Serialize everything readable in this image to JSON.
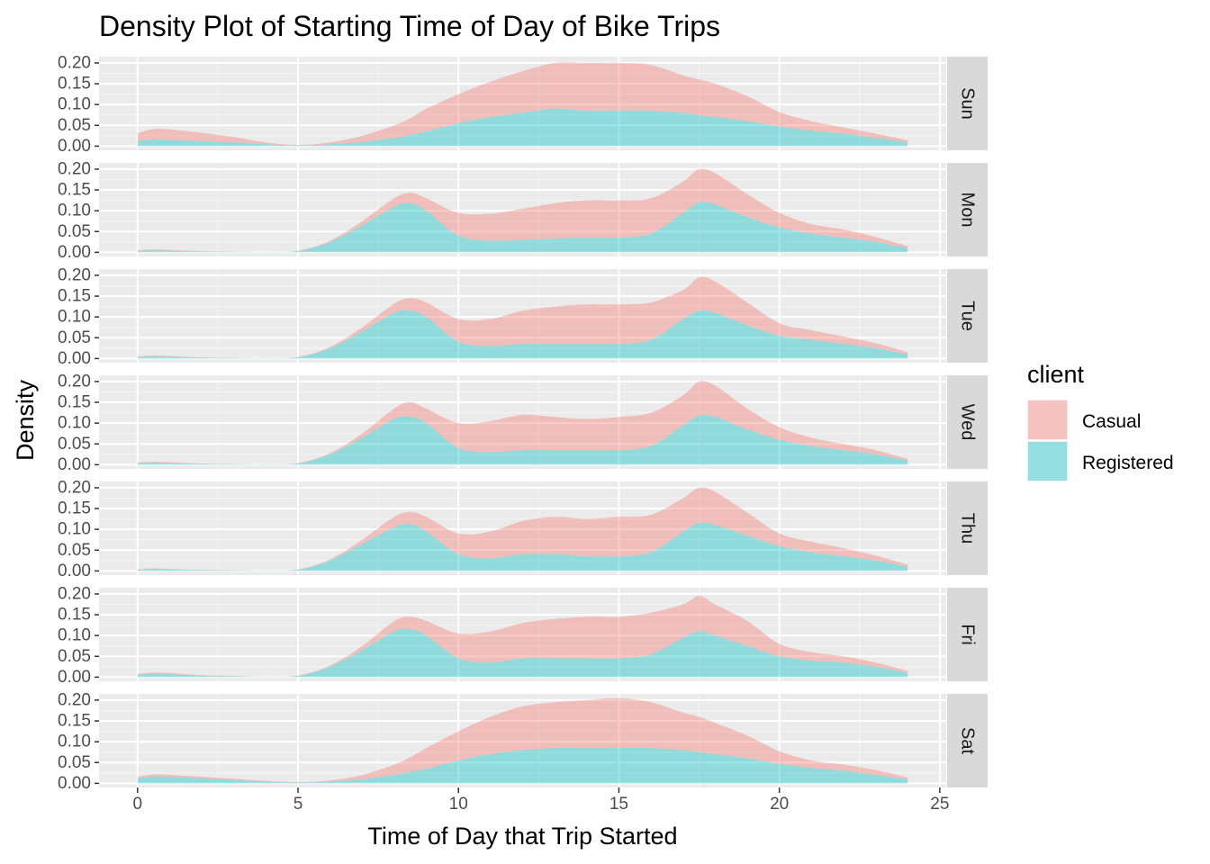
{
  "chart_data": {
    "type": "area",
    "title": "Density Plot of Starting Time of Day of Bike Trips",
    "xlabel": "Time of Day that Trip Started",
    "ylabel": "Density",
    "xlim": [
      -1.2,
      25.2
    ],
    "ylim": [
      -0.01,
      0.215
    ],
    "x_ticks": [
      "0",
      "5",
      "10",
      "15",
      "20",
      "25"
    ],
    "x_tick_values": [
      0,
      5,
      10,
      15,
      20,
      25
    ],
    "y_ticks": [
      "0.00",
      "0.05",
      "0.10",
      "0.15",
      "0.20"
    ],
    "y_tick_values": [
      0,
      0.05,
      0.1,
      0.15,
      0.2
    ],
    "grid": true,
    "stacked": true,
    "legend": {
      "title": "client",
      "position": "right",
      "entries": [
        {
          "name": "Casual",
          "color": "#F8766D"
        },
        {
          "name": "Registered",
          "color": "#00BFC4"
        }
      ]
    },
    "x": [
      0,
      0.5,
      1,
      2,
      3,
      4,
      5,
      6,
      7,
      8,
      8.5,
      9,
      10,
      11,
      12,
      13,
      14,
      15,
      16,
      17,
      17.5,
      18,
      19,
      20,
      21,
      22,
      23,
      24
    ],
    "facets": [
      {
        "label": "Sun",
        "series": [
          {
            "name": "Registered",
            "values": [
              0.013,
              0.016,
              0.015,
              0.012,
              0.009,
              0.004,
              0.002,
              0.004,
              0.01,
              0.02,
              0.027,
              0.035,
              0.055,
              0.07,
              0.08,
              0.09,
              0.085,
              0.085,
              0.085,
              0.08,
              0.075,
              0.07,
              0.06,
              0.047,
              0.037,
              0.03,
              0.02,
              0.009
            ]
          },
          {
            "name": "Casual",
            "values": [
              0.018,
              0.025,
              0.025,
              0.02,
              0.013,
              0.005,
              0.001,
              0.005,
              0.015,
              0.03,
              0.04,
              0.055,
              0.07,
              0.085,
              0.1,
              0.11,
              0.115,
              0.115,
              0.11,
              0.09,
              0.085,
              0.08,
              0.06,
              0.035,
              0.023,
              0.015,
              0.01,
              0.005
            ]
          }
        ]
      },
      {
        "label": "Mon",
        "series": [
          {
            "name": "Registered",
            "values": [
              0.004,
              0.005,
              0.004,
              0.002,
              0.001,
              0.001,
              0.003,
              0.025,
              0.065,
              0.11,
              0.118,
              0.1,
              0.04,
              0.028,
              0.03,
              0.033,
              0.035,
              0.035,
              0.045,
              0.095,
              0.12,
              0.115,
              0.085,
              0.06,
              0.045,
              0.035,
              0.025,
              0.01
            ]
          },
          {
            "name": "Casual",
            "values": [
              0.001,
              0.002,
              0.002,
              0.001,
              0.001,
              0.0,
              0.001,
              0.003,
              0.01,
              0.02,
              0.025,
              0.03,
              0.055,
              0.065,
              0.075,
              0.085,
              0.09,
              0.09,
              0.085,
              0.075,
              0.08,
              0.075,
              0.055,
              0.035,
              0.023,
              0.02,
              0.012,
              0.005
            ]
          }
        ]
      },
      {
        "label": "Tue",
        "series": [
          {
            "name": "Registered",
            "values": [
              0.004,
              0.005,
              0.004,
              0.002,
              0.001,
              0.001,
              0.003,
              0.025,
              0.065,
              0.11,
              0.115,
              0.1,
              0.04,
              0.03,
              0.035,
              0.035,
              0.035,
              0.035,
              0.045,
              0.095,
              0.115,
              0.11,
              0.08,
              0.055,
              0.045,
              0.035,
              0.025,
              0.01
            ]
          },
          {
            "name": "Casual",
            "values": [
              0.001,
              0.002,
              0.002,
              0.001,
              0.001,
              0.0,
              0.001,
              0.003,
              0.01,
              0.022,
              0.03,
              0.035,
              0.055,
              0.065,
              0.08,
              0.09,
              0.095,
              0.095,
              0.09,
              0.07,
              0.08,
              0.075,
              0.055,
              0.03,
              0.023,
              0.018,
              0.012,
              0.005
            ]
          }
        ]
      },
      {
        "label": "Wed",
        "series": [
          {
            "name": "Registered",
            "values": [
              0.004,
              0.005,
              0.004,
              0.002,
              0.001,
              0.001,
              0.003,
              0.025,
              0.065,
              0.11,
              0.115,
              0.1,
              0.04,
              0.03,
              0.035,
              0.035,
              0.035,
              0.035,
              0.045,
              0.095,
              0.118,
              0.115,
              0.085,
              0.06,
              0.045,
              0.035,
              0.025,
              0.01
            ]
          },
          {
            "name": "Casual",
            "values": [
              0.001,
              0.002,
              0.002,
              0.001,
              0.001,
              0.0,
              0.001,
              0.003,
              0.01,
              0.025,
              0.035,
              0.035,
              0.06,
              0.075,
              0.085,
              0.08,
              0.075,
              0.08,
              0.08,
              0.072,
              0.082,
              0.075,
              0.05,
              0.03,
              0.02,
              0.015,
              0.01,
              0.004
            ]
          }
        ]
      },
      {
        "label": "Thu",
        "series": [
          {
            "name": "Registered",
            "values": [
              0.003,
              0.004,
              0.003,
              0.002,
              0.001,
              0.001,
              0.003,
              0.025,
              0.065,
              0.105,
              0.112,
              0.095,
              0.04,
              0.03,
              0.04,
              0.04,
              0.035,
              0.035,
              0.045,
              0.095,
              0.115,
              0.11,
              0.085,
              0.06,
              0.045,
              0.035,
              0.025,
              0.01
            ]
          },
          {
            "name": "Casual",
            "values": [
              0.001,
              0.002,
              0.002,
              0.001,
              0.001,
              0.0,
              0.001,
              0.003,
              0.01,
              0.025,
              0.03,
              0.035,
              0.05,
              0.065,
              0.08,
              0.09,
              0.09,
              0.095,
              0.09,
              0.08,
              0.085,
              0.08,
              0.055,
              0.03,
              0.025,
              0.02,
              0.012,
              0.005
            ]
          }
        ]
      },
      {
        "label": "Fri",
        "series": [
          {
            "name": "Registered",
            "values": [
              0.006,
              0.008,
              0.007,
              0.003,
              0.002,
              0.001,
              0.003,
              0.025,
              0.065,
              0.11,
              0.115,
              0.1,
              0.045,
              0.035,
              0.045,
              0.045,
              0.045,
              0.045,
              0.055,
              0.095,
              0.11,
              0.1,
              0.075,
              0.05,
              0.04,
              0.035,
              0.025,
              0.01
            ]
          },
          {
            "name": "Casual",
            "values": [
              0.002,
              0.003,
              0.003,
              0.002,
              0.001,
              0.0,
              0.001,
              0.003,
              0.01,
              0.025,
              0.03,
              0.035,
              0.06,
              0.075,
              0.085,
              0.095,
              0.1,
              0.1,
              0.1,
              0.08,
              0.085,
              0.075,
              0.06,
              0.03,
              0.02,
              0.015,
              0.01,
              0.005
            ]
          }
        ]
      },
      {
        "label": "Sat",
        "series": [
          {
            "name": "Registered",
            "values": [
              0.012,
              0.016,
              0.015,
              0.012,
              0.008,
              0.004,
              0.002,
              0.004,
              0.01,
              0.02,
              0.028,
              0.035,
              0.055,
              0.07,
              0.08,
              0.085,
              0.085,
              0.085,
              0.085,
              0.08,
              0.075,
              0.07,
              0.06,
              0.047,
              0.037,
              0.03,
              0.02,
              0.009
            ]
          },
          {
            "name": "Casual",
            "values": [
              0.004,
              0.005,
              0.005,
              0.004,
              0.003,
              0.002,
              0.001,
              0.003,
              0.01,
              0.025,
              0.035,
              0.05,
              0.07,
              0.09,
              0.105,
              0.11,
              0.115,
              0.12,
              0.11,
              0.09,
              0.085,
              0.075,
              0.055,
              0.03,
              0.018,
              0.015,
              0.012,
              0.005
            ]
          }
        ]
      }
    ]
  }
}
